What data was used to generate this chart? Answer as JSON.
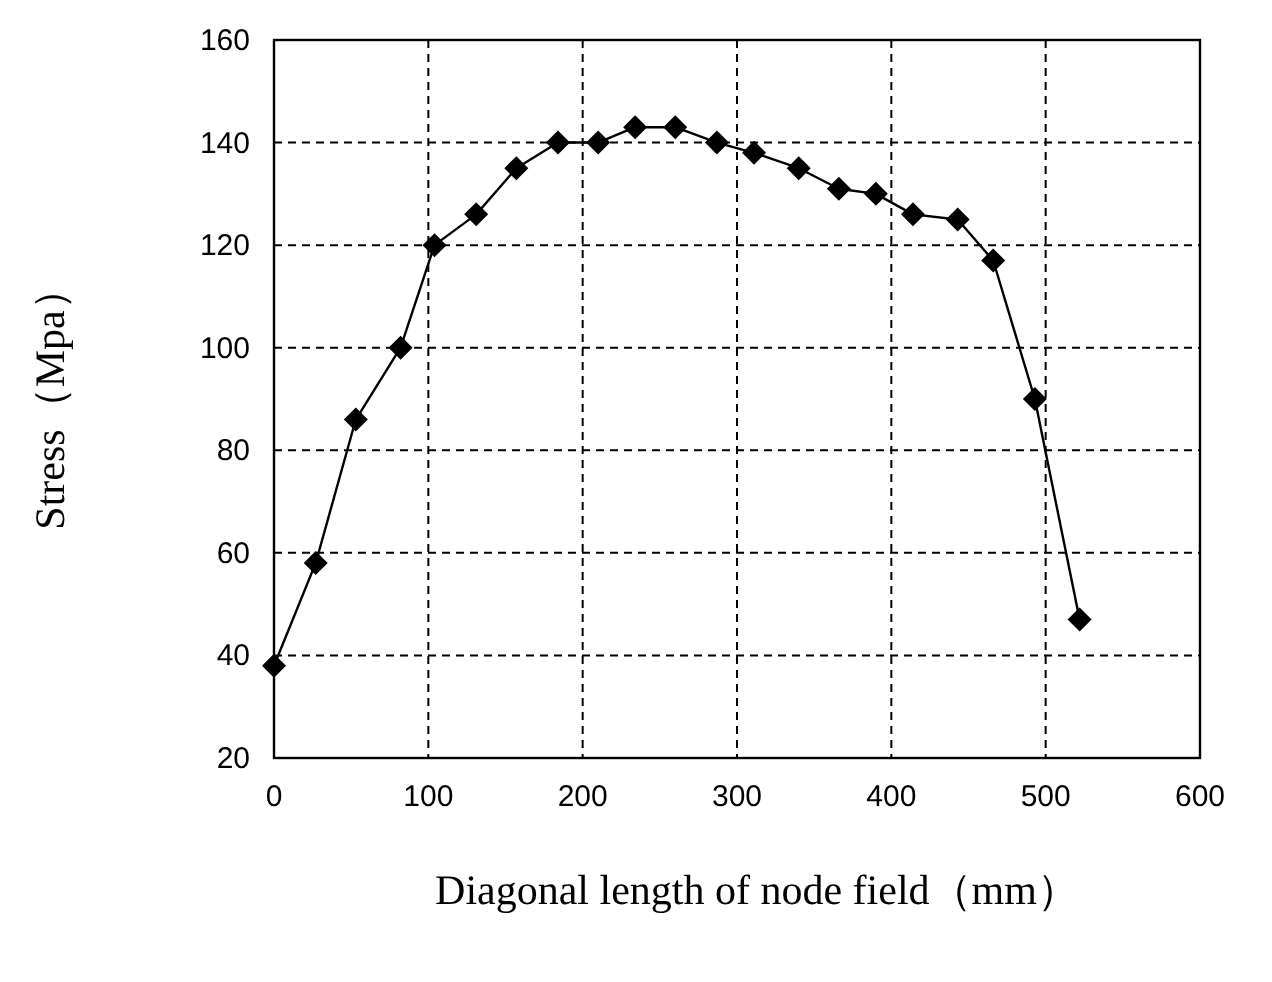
{
  "chart_data": {
    "type": "line",
    "xlabel": "Diagonal length of node field（mm）",
    "ylabel": "Stress（Mpa）",
    "x": [
      0,
      27,
      53,
      82,
      104,
      131,
      157,
      184,
      210,
      234,
      260,
      287,
      311,
      340,
      366,
      390,
      414,
      443,
      466,
      493,
      522
    ],
    "series": [
      {
        "color": "#000000",
        "values": [
          38,
          58,
          86,
          100,
          120,
          126,
          135,
          140,
          140,
          143,
          143,
          140,
          138,
          135,
          131,
          130,
          126,
          125,
          117,
          90,
          47
        ]
      }
    ],
    "xlim": [
      0,
      600
    ],
    "xticks": [
      0,
      100,
      200,
      300,
      400,
      500,
      600
    ],
    "ylim": [
      20,
      160
    ],
    "yticks": [
      20,
      40,
      60,
      80,
      100,
      120,
      140,
      160
    ],
    "grid": true,
    "marker": "diamond",
    "line_style": "solid"
  }
}
